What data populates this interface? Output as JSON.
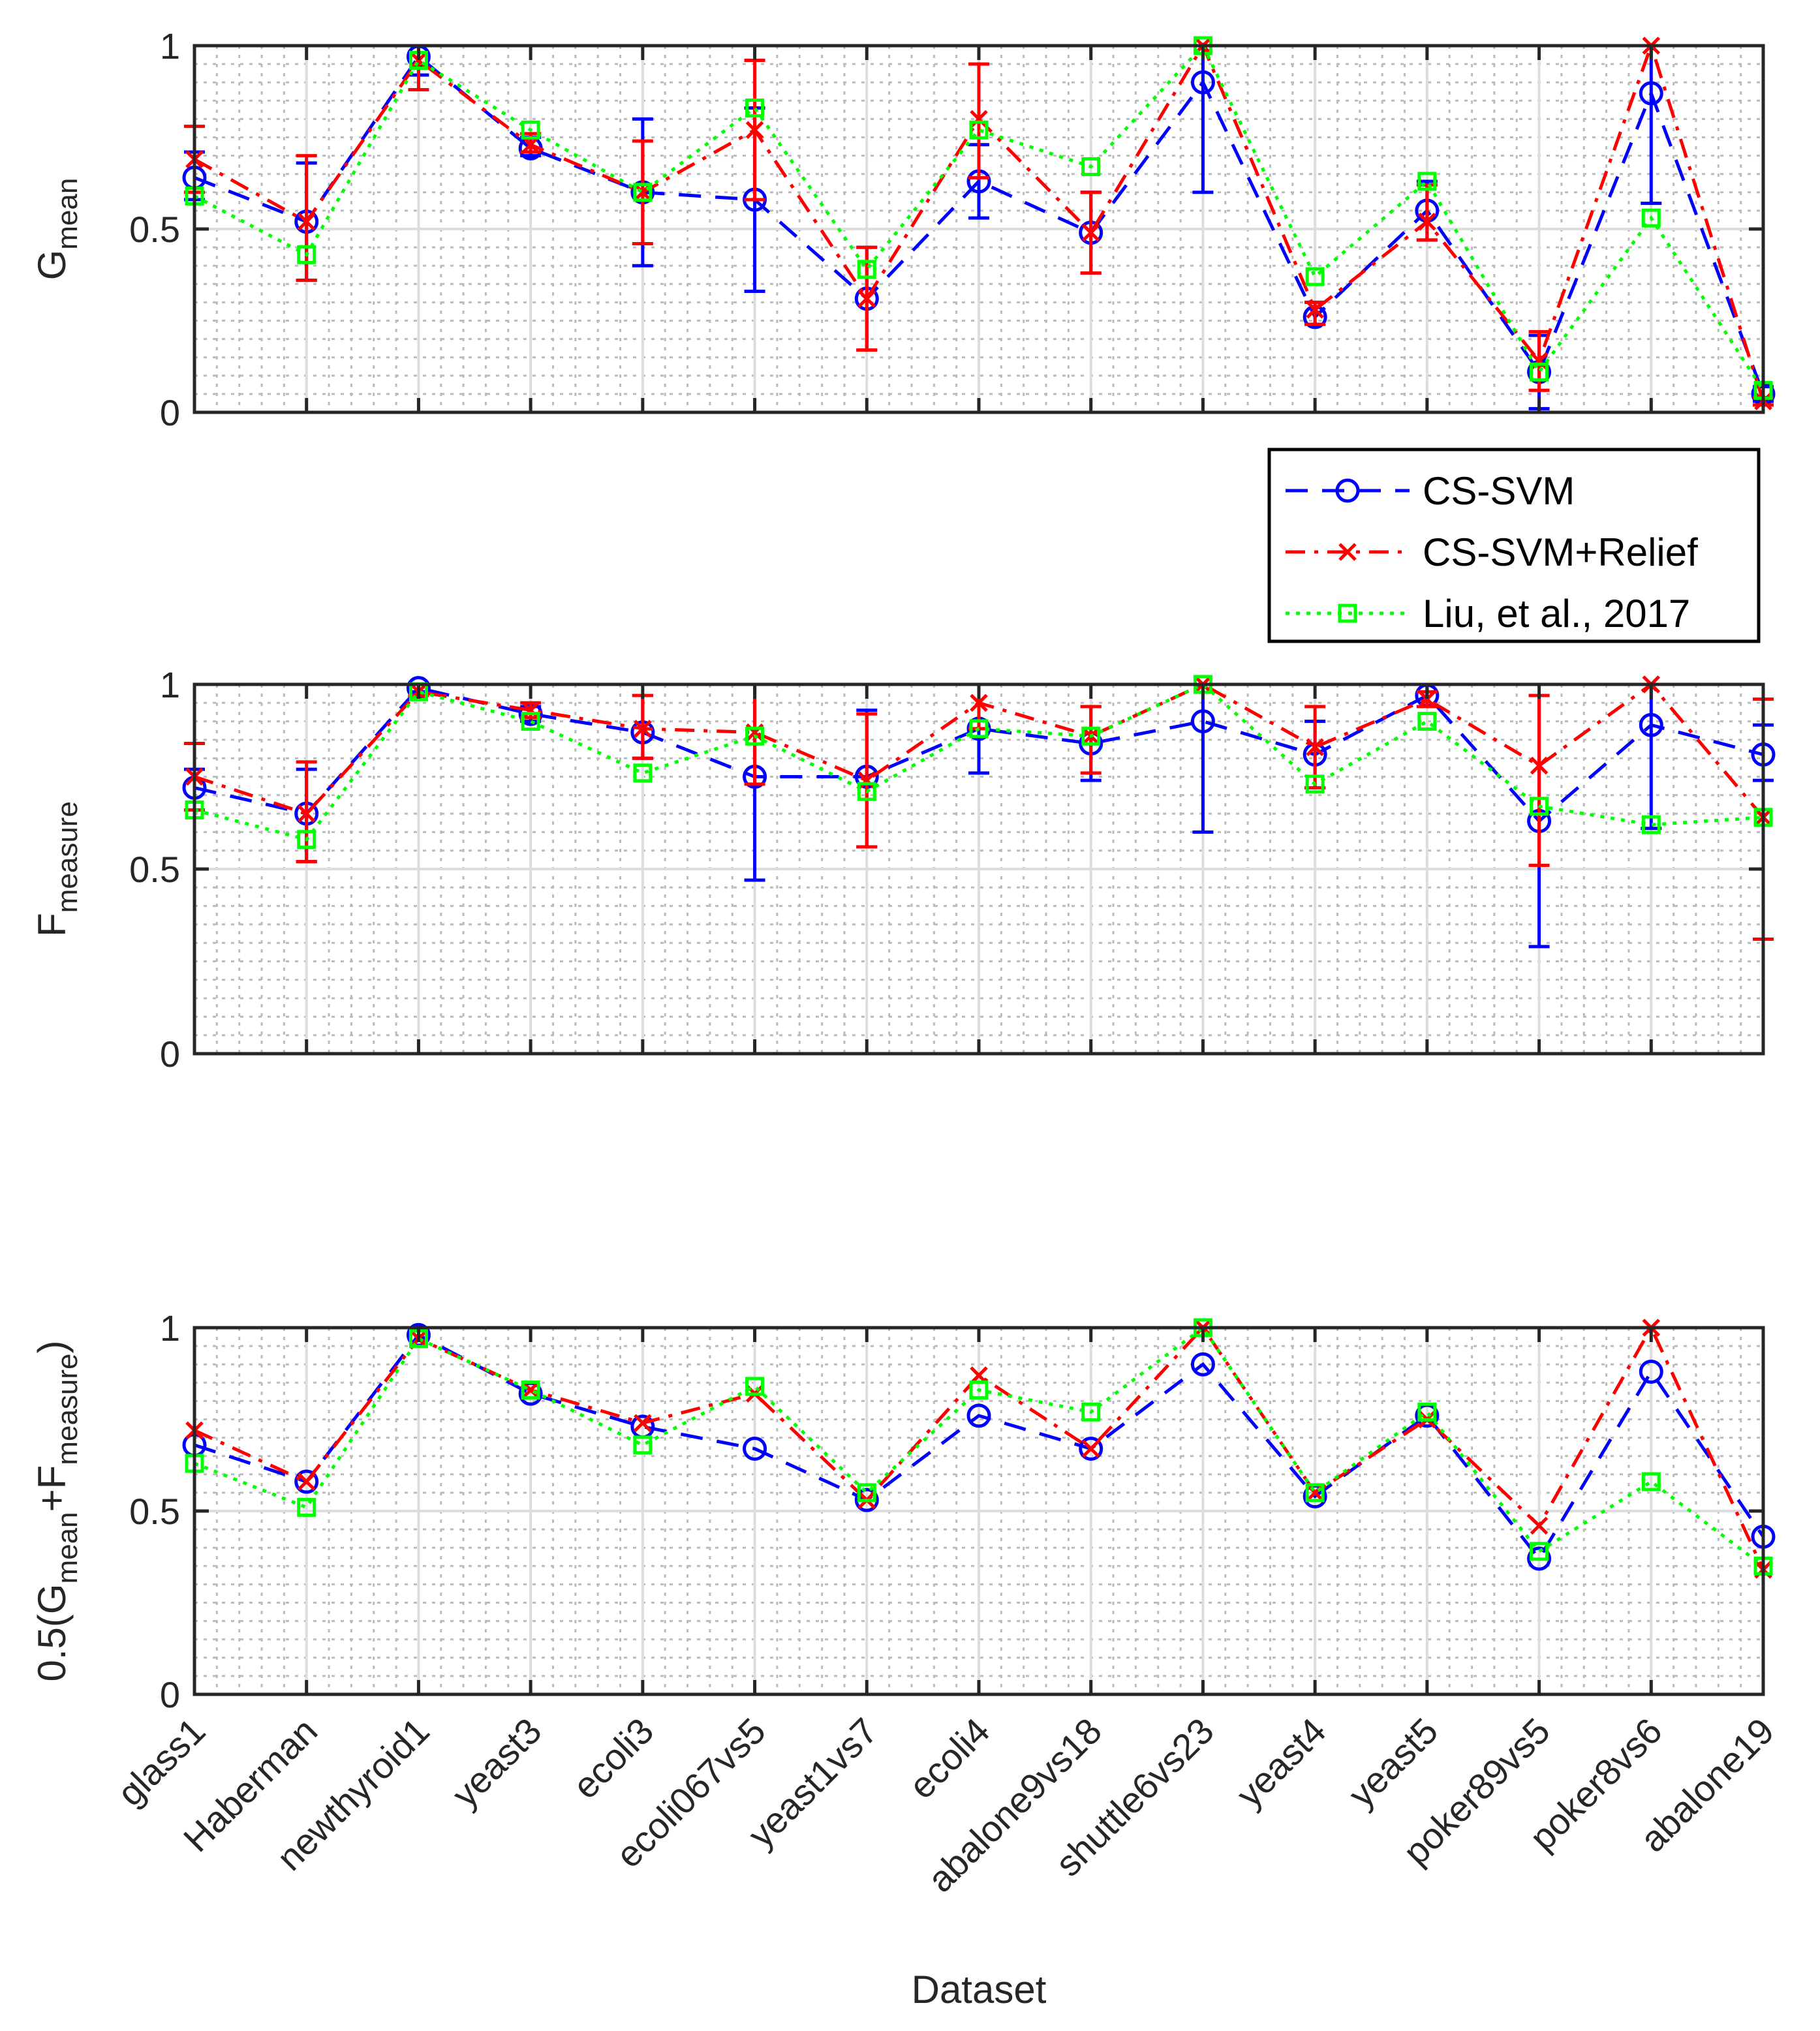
{
  "chart_data": {
    "type": "line",
    "xlabel": "Dataset",
    "categories": [
      "glass1",
      "Haberman",
      "newthyroid1",
      "yeast3",
      "ecoli3",
      "ecoli067vs5",
      "yeast1vs7",
      "ecoli4",
      "abalone9vs18",
      "shuttle6vs23",
      "yeast4",
      "yeast5",
      "poker89vs5",
      "poker8vs6",
      "abalone19"
    ],
    "legend": {
      "placement": "between-top-and-middle-right",
      "entries": [
        "CS-SVM",
        "CS-SVM+Relief",
        "Liu, et al., 2017"
      ]
    },
    "series_styles": [
      {
        "name": "CS-SVM",
        "color": "#0000ff",
        "dash": "dashed",
        "marker": "circle"
      },
      {
        "name": "CS-SVM+Relief",
        "color": "#ff0000",
        "dash": "dashdot",
        "marker": "x"
      },
      {
        "name": "Liu, et al., 2017",
        "color": "#00ff00",
        "dash": "dotted",
        "marker": "square"
      }
    ],
    "grid": true,
    "panels": [
      {
        "ylabel_main": "G",
        "ylabel_sub": "mean",
        "ylim": [
          0,
          1
        ],
        "yticks": [
          "0",
          "0.5",
          "1"
        ],
        "series": [
          {
            "name": "CS-SVM",
            "values": [
              0.64,
              0.52,
              0.97,
              0.72,
              0.6,
              0.58,
              0.31,
              0.63,
              0.49,
              0.9,
              0.26,
              0.55,
              0.11,
              0.87,
              0.05
            ],
            "err": [
              [
                0.58,
                0.71
              ],
              [
                0.36,
                0.68
              ],
              [
                0.92,
                1.0
              ],
              [
                0.7,
                0.75
              ],
              [
                0.4,
                0.8
              ],
              [
                0.33,
                0.83
              ],
              [
                0.17,
                0.45
              ],
              [
                0.53,
                0.73
              ],
              [
                0.38,
                0.6
              ],
              [
                0.6,
                1.0
              ],
              [
                0.24,
                0.3
              ],
              [
                0.47,
                0.63
              ],
              [
                0.01,
                0.21
              ],
              [
                0.57,
                1.0
              ],
              [
                0.03,
                0.07
              ]
            ]
          },
          {
            "name": "CS-SVM+Relief",
            "values": [
              0.69,
              0.52,
              0.96,
              0.73,
              0.6,
              0.77,
              0.31,
              0.8,
              0.49,
              1.0,
              0.28,
              0.52,
              0.14,
              1.0,
              0.03
            ],
            "err": [
              [
                0.6,
                0.78
              ],
              [
                0.36,
                0.7
              ],
              [
                0.88,
                1.0
              ],
              [
                0.71,
                0.76
              ],
              [
                0.46,
                0.74
              ],
              [
                0.58,
                0.96
              ],
              [
                0.17,
                0.45
              ],
              [
                0.64,
                0.95
              ],
              [
                0.38,
                0.6
              ],
              [
                1.0,
                1.0
              ],
              [
                0.24,
                0.3
              ],
              [
                0.47,
                0.62
              ],
              [
                0.06,
                0.22
              ],
              [
                1.0,
                1.0
              ],
              [
                0.02,
                0.04
              ]
            ]
          },
          {
            "name": "Liu, et al., 2017",
            "values": [
              0.59,
              0.43,
              0.96,
              0.77,
              0.6,
              0.83,
              0.39,
              0.77,
              0.67,
              1.0,
              0.37,
              0.63,
              0.11,
              0.53,
              0.06
            ],
            "err": null
          }
        ]
      },
      {
        "ylabel_main": "F",
        "ylabel_sub": "measure",
        "ylim": [
          0,
          1
        ],
        "yticks": [
          "0",
          "0.5",
          "1"
        ],
        "series": [
          {
            "name": "CS-SVM",
            "values": [
              0.72,
              0.65,
              0.99,
              0.92,
              0.87,
              0.75,
              0.75,
              0.88,
              0.84,
              0.9,
              0.81,
              0.97,
              0.63,
              0.89,
              0.81
            ],
            "err": [
              [
                0.66,
                0.77
              ],
              [
                0.52,
                0.77
              ],
              [
                0.98,
                1.0
              ],
              [
                0.9,
                0.94
              ],
              [
                0.8,
                0.97
              ],
              [
                0.47,
                1.0
              ],
              [
                0.56,
                0.93
              ],
              [
                0.76,
                1.0
              ],
              [
                0.74,
                0.94
              ],
              [
                0.6,
                1.0
              ],
              [
                0.72,
                0.9
              ],
              [
                0.94,
                1.0
              ],
              [
                0.29,
                0.97
              ],
              [
                0.61,
                1.0
              ],
              [
                0.74,
                0.89
              ]
            ]
          },
          {
            "name": "CS-SVM+Relief",
            "values": [
              0.75,
              0.65,
              0.98,
              0.93,
              0.88,
              0.87,
              0.74,
              0.95,
              0.86,
              1.0,
              0.83,
              0.96,
              0.78,
              1.0,
              0.64
            ],
            "err": [
              [
                0.66,
                0.84
              ],
              [
                0.52,
                0.79
              ],
              [
                0.97,
                1.0
              ],
              [
                0.91,
                0.95
              ],
              [
                0.8,
                0.97
              ],
              [
                0.73,
                1.0
              ],
              [
                0.56,
                0.92
              ],
              [
                0.88,
                1.0
              ],
              [
                0.76,
                0.94
              ],
              [
                1.0,
                1.0
              ],
              [
                0.72,
                0.94
              ],
              [
                0.94,
                0.98
              ],
              [
                0.51,
                0.97
              ],
              [
                1.0,
                1.0
              ],
              [
                0.31,
                0.96
              ]
            ]
          },
          {
            "name": "Liu, et al., 2017",
            "values": [
              0.66,
              0.58,
              0.98,
              0.9,
              0.76,
              0.86,
              0.71,
              0.88,
              0.86,
              1.0,
              0.73,
              0.9,
              0.67,
              0.62,
              0.64
            ],
            "err": null
          }
        ]
      },
      {
        "ylabel_main": "0.5(G",
        "ylabel_sub1": "mean",
        "ylabel_mid": "+F",
        "ylabel_sub2": "measure",
        "ylabel_end": ")",
        "ylim": [
          0,
          1
        ],
        "yticks": [
          "0",
          "0.5",
          "1"
        ],
        "series": [
          {
            "name": "CS-SVM",
            "values": [
              0.68,
              0.58,
              0.98,
              0.82,
              0.73,
              0.67,
              0.53,
              0.76,
              0.67,
              0.9,
              0.54,
              0.76,
              0.37,
              0.88,
              0.43
            ],
            "err": null
          },
          {
            "name": "CS-SVM+Relief",
            "values": [
              0.72,
              0.58,
              0.97,
              0.83,
              0.74,
              0.82,
              0.53,
              0.87,
              0.67,
              1.0,
              0.55,
              0.75,
              0.46,
              1.0,
              0.34
            ],
            "err": null
          },
          {
            "name": "Liu, et al., 2017",
            "values": [
              0.63,
              0.51,
              0.97,
              0.83,
              0.68,
              0.84,
              0.55,
              0.83,
              0.77,
              1.0,
              0.55,
              0.77,
              0.39,
              0.58,
              0.35
            ],
            "err": null
          }
        ]
      }
    ]
  }
}
